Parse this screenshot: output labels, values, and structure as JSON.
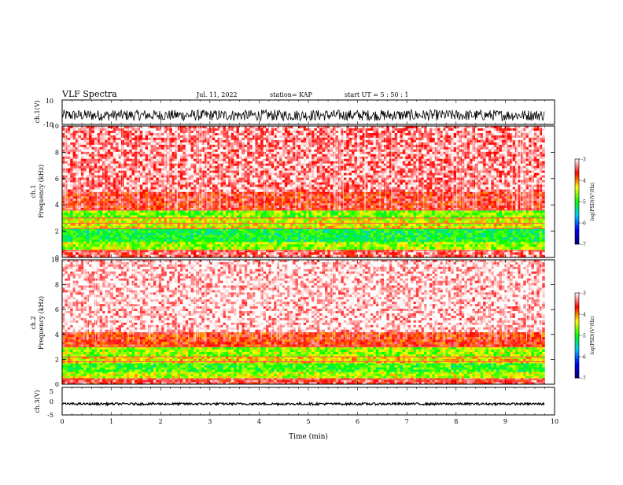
{
  "header": {
    "title": "VLF Spectra",
    "date": "Jul. 11, 2022",
    "station": "station= KAP",
    "start": "start UT =  5 : 50 : 1"
  },
  "colors": {
    "background": "#ffffff",
    "axis": "#000000",
    "colormap": [
      "#000080",
      "#0000ff",
      "#00c8ff",
      "#00ff00",
      "#ffff00",
      "#ff0000",
      "#ffffff"
    ]
  },
  "chart_data": [
    {
      "type": "line",
      "name": "ch1-waveform",
      "ylabel": "ch.1(V)",
      "ylim": [
        -10,
        10
      ],
      "yticks": [
        "10",
        "-10"
      ],
      "xlim": [
        0,
        10
      ],
      "grid": false,
      "summary": {
        "center_v": -2.5,
        "amplitude_v": 4.5
      }
    },
    {
      "type": "heatmap",
      "name": "ch1-spectrogram",
      "ylabel": "ch.1 Frequency (kHz)",
      "ylabel_lines": [
        "ch.1",
        "Frequency (kHz)"
      ],
      "ylim": [
        0,
        10
      ],
      "yticks": [
        "0",
        "2",
        "4",
        "6",
        "8",
        "10"
      ],
      "xlim": [
        0,
        9.8
      ],
      "colorbar": {
        "label": "log(PSD)(V²/Hz)",
        "range": [
          -7,
          -3
        ],
        "ticks": [
          "-3",
          "-4",
          "-5",
          "-6",
          "-7"
        ]
      },
      "bands_khz": [
        {
          "from": 0.0,
          "to": 0.6,
          "level": -3.4
        },
        {
          "from": 0.6,
          "to": 1.2,
          "level": -4.6
        },
        {
          "from": 1.2,
          "to": 2.2,
          "level": -5.1
        },
        {
          "from": 2.2,
          "to": 3.0,
          "level": -4.4
        },
        {
          "from": 3.0,
          "to": 3.6,
          "level": -4.7
        },
        {
          "from": 3.6,
          "to": 5.0,
          "level": -3.6
        },
        {
          "from": 5.0,
          "to": 10.0,
          "level": -3.3
        }
      ],
      "lines_khz": [
        0.5,
        2.2,
        2.6,
        3.0,
        3.6
      ]
    },
    {
      "type": "heatmap",
      "name": "ch2-spectrogram",
      "ylabel": "ch.2 Frequency (kHz)",
      "ylabel_lines": [
        "ch.2",
        "Frequency (kHz)"
      ],
      "ylim": [
        0,
        10
      ],
      "yticks": [
        "0",
        "2",
        "4",
        "6",
        "8",
        "10"
      ],
      "xlim": [
        0,
        9.8
      ],
      "colorbar": {
        "label": "log(PSD)(V²/Hz)",
        "range": [
          -7,
          -3
        ],
        "ticks": [
          "-3",
          "-4",
          "-5",
          "-6",
          "-7"
        ]
      },
      "bands_khz": [
        {
          "from": 0.0,
          "to": 0.5,
          "level": -3.5
        },
        {
          "from": 0.5,
          "to": 1.0,
          "level": -4.5
        },
        {
          "from": 1.0,
          "to": 1.7,
          "level": -4.9
        },
        {
          "from": 1.7,
          "to": 2.2,
          "level": -4.3
        },
        {
          "from": 2.2,
          "to": 3.0,
          "level": -4.6
        },
        {
          "from": 3.0,
          "to": 4.2,
          "level": -3.7
        },
        {
          "from": 4.2,
          "to": 10.0,
          "level": -3.1
        }
      ],
      "lines_khz": [
        0.4,
        1.8,
        2.2,
        3.0
      ]
    },
    {
      "type": "line",
      "name": "ch3-waveform",
      "ylabel": "ch.3(V)",
      "ylim": [
        -5,
        5
      ],
      "yticks": [
        "5",
        "0",
        "-5"
      ],
      "xlim": [
        0,
        10
      ],
      "xlabel": "Time (min)",
      "xticks": [
        "0",
        "1",
        "2",
        "3",
        "4",
        "5",
        "6",
        "7",
        "8",
        "9",
        "10"
      ],
      "grid": false,
      "summary": {
        "center_v": -1.0,
        "amplitude_v": 0.4
      }
    }
  ]
}
